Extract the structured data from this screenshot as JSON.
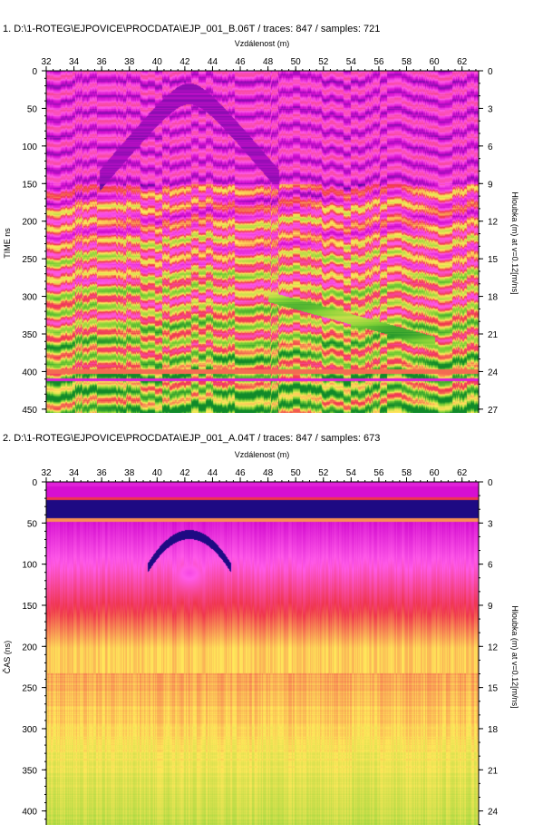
{
  "chart_data": [
    {
      "type": "heatmap",
      "title": "1. D:\\1-ROTEG\\EJPOVICE\\PROCDATA\\EJP_001_B.06T / traces: 847 / samples: 721",
      "xlabel": "Vzdálenost (m)",
      "ylabel": "TIME ns",
      "ylabel_right": "Hloubka (m) at v=0.12[m/ns]",
      "x_ticks": [
        32,
        34,
        36,
        38,
        40,
        42,
        44,
        46,
        48,
        50,
        52,
        54,
        56,
        58,
        60,
        62
      ],
      "xlim": [
        32,
        63.2
      ],
      "y_ticks": [
        0,
        50,
        100,
        150,
        200,
        250,
        300,
        350,
        400,
        450
      ],
      "ylim": [
        0,
        455
      ],
      "y2_ticks": [
        0,
        3,
        6,
        9,
        12,
        15,
        18,
        21,
        24,
        27
      ],
      "y2_scale_ns_per_m": 16.667,
      "palette": [
        "#0a0a7a",
        "#d60fd1",
        "#ff5ae8",
        "#f0364e",
        "#ffe85a",
        "#7fd136",
        "#0f8a2a"
      ],
      "features": [
        {
          "kind": "hyperbola",
          "apex_x": 42.3,
          "apex_t": 30,
          "half_width_m": 6.5
        },
        {
          "kind": "bright_band",
          "t": 400
        },
        {
          "kind": "dipping_reflector",
          "from": [
            48,
            300
          ],
          "to": [
            60,
            360
          ]
        }
      ]
    },
    {
      "type": "heatmap",
      "title": "2. D:\\1-ROTEG\\EJPOVICE\\PROCDATA\\EJP_001_A.04T / traces: 847 / samples: 673",
      "xlabel": "Vzdálenost (m)",
      "ylabel": "ČAS (ns)",
      "ylabel_right": "Hloubka (m) at v=0.12[m/ns]",
      "x_ticks": [
        32,
        34,
        36,
        38,
        40,
        42,
        44,
        46,
        48,
        50,
        52,
        54,
        56,
        58,
        60,
        62
      ],
      "xlim": [
        32,
        63.2
      ],
      "y_ticks": [
        0,
        50,
        100,
        150,
        200,
        250,
        300,
        350,
        400
      ],
      "ylim": [
        0,
        417
      ],
      "y2_ticks": [
        0,
        3,
        6,
        9,
        12,
        15,
        18,
        21,
        24
      ],
      "y2_scale_ns_per_m": 16.667,
      "palette": [
        "#0a0a7a",
        "#d60fd1",
        "#ff5ae8",
        "#f0364e",
        "#ffe85a",
        "#7fd136"
      ],
      "features": [
        {
          "kind": "hyperbola",
          "apex_x": 42.3,
          "apex_t": 62,
          "half_width_m": 3
        },
        {
          "kind": "surface_band",
          "t": 20
        },
        {
          "kind": "layer_boundary",
          "t": 45
        }
      ]
    }
  ]
}
